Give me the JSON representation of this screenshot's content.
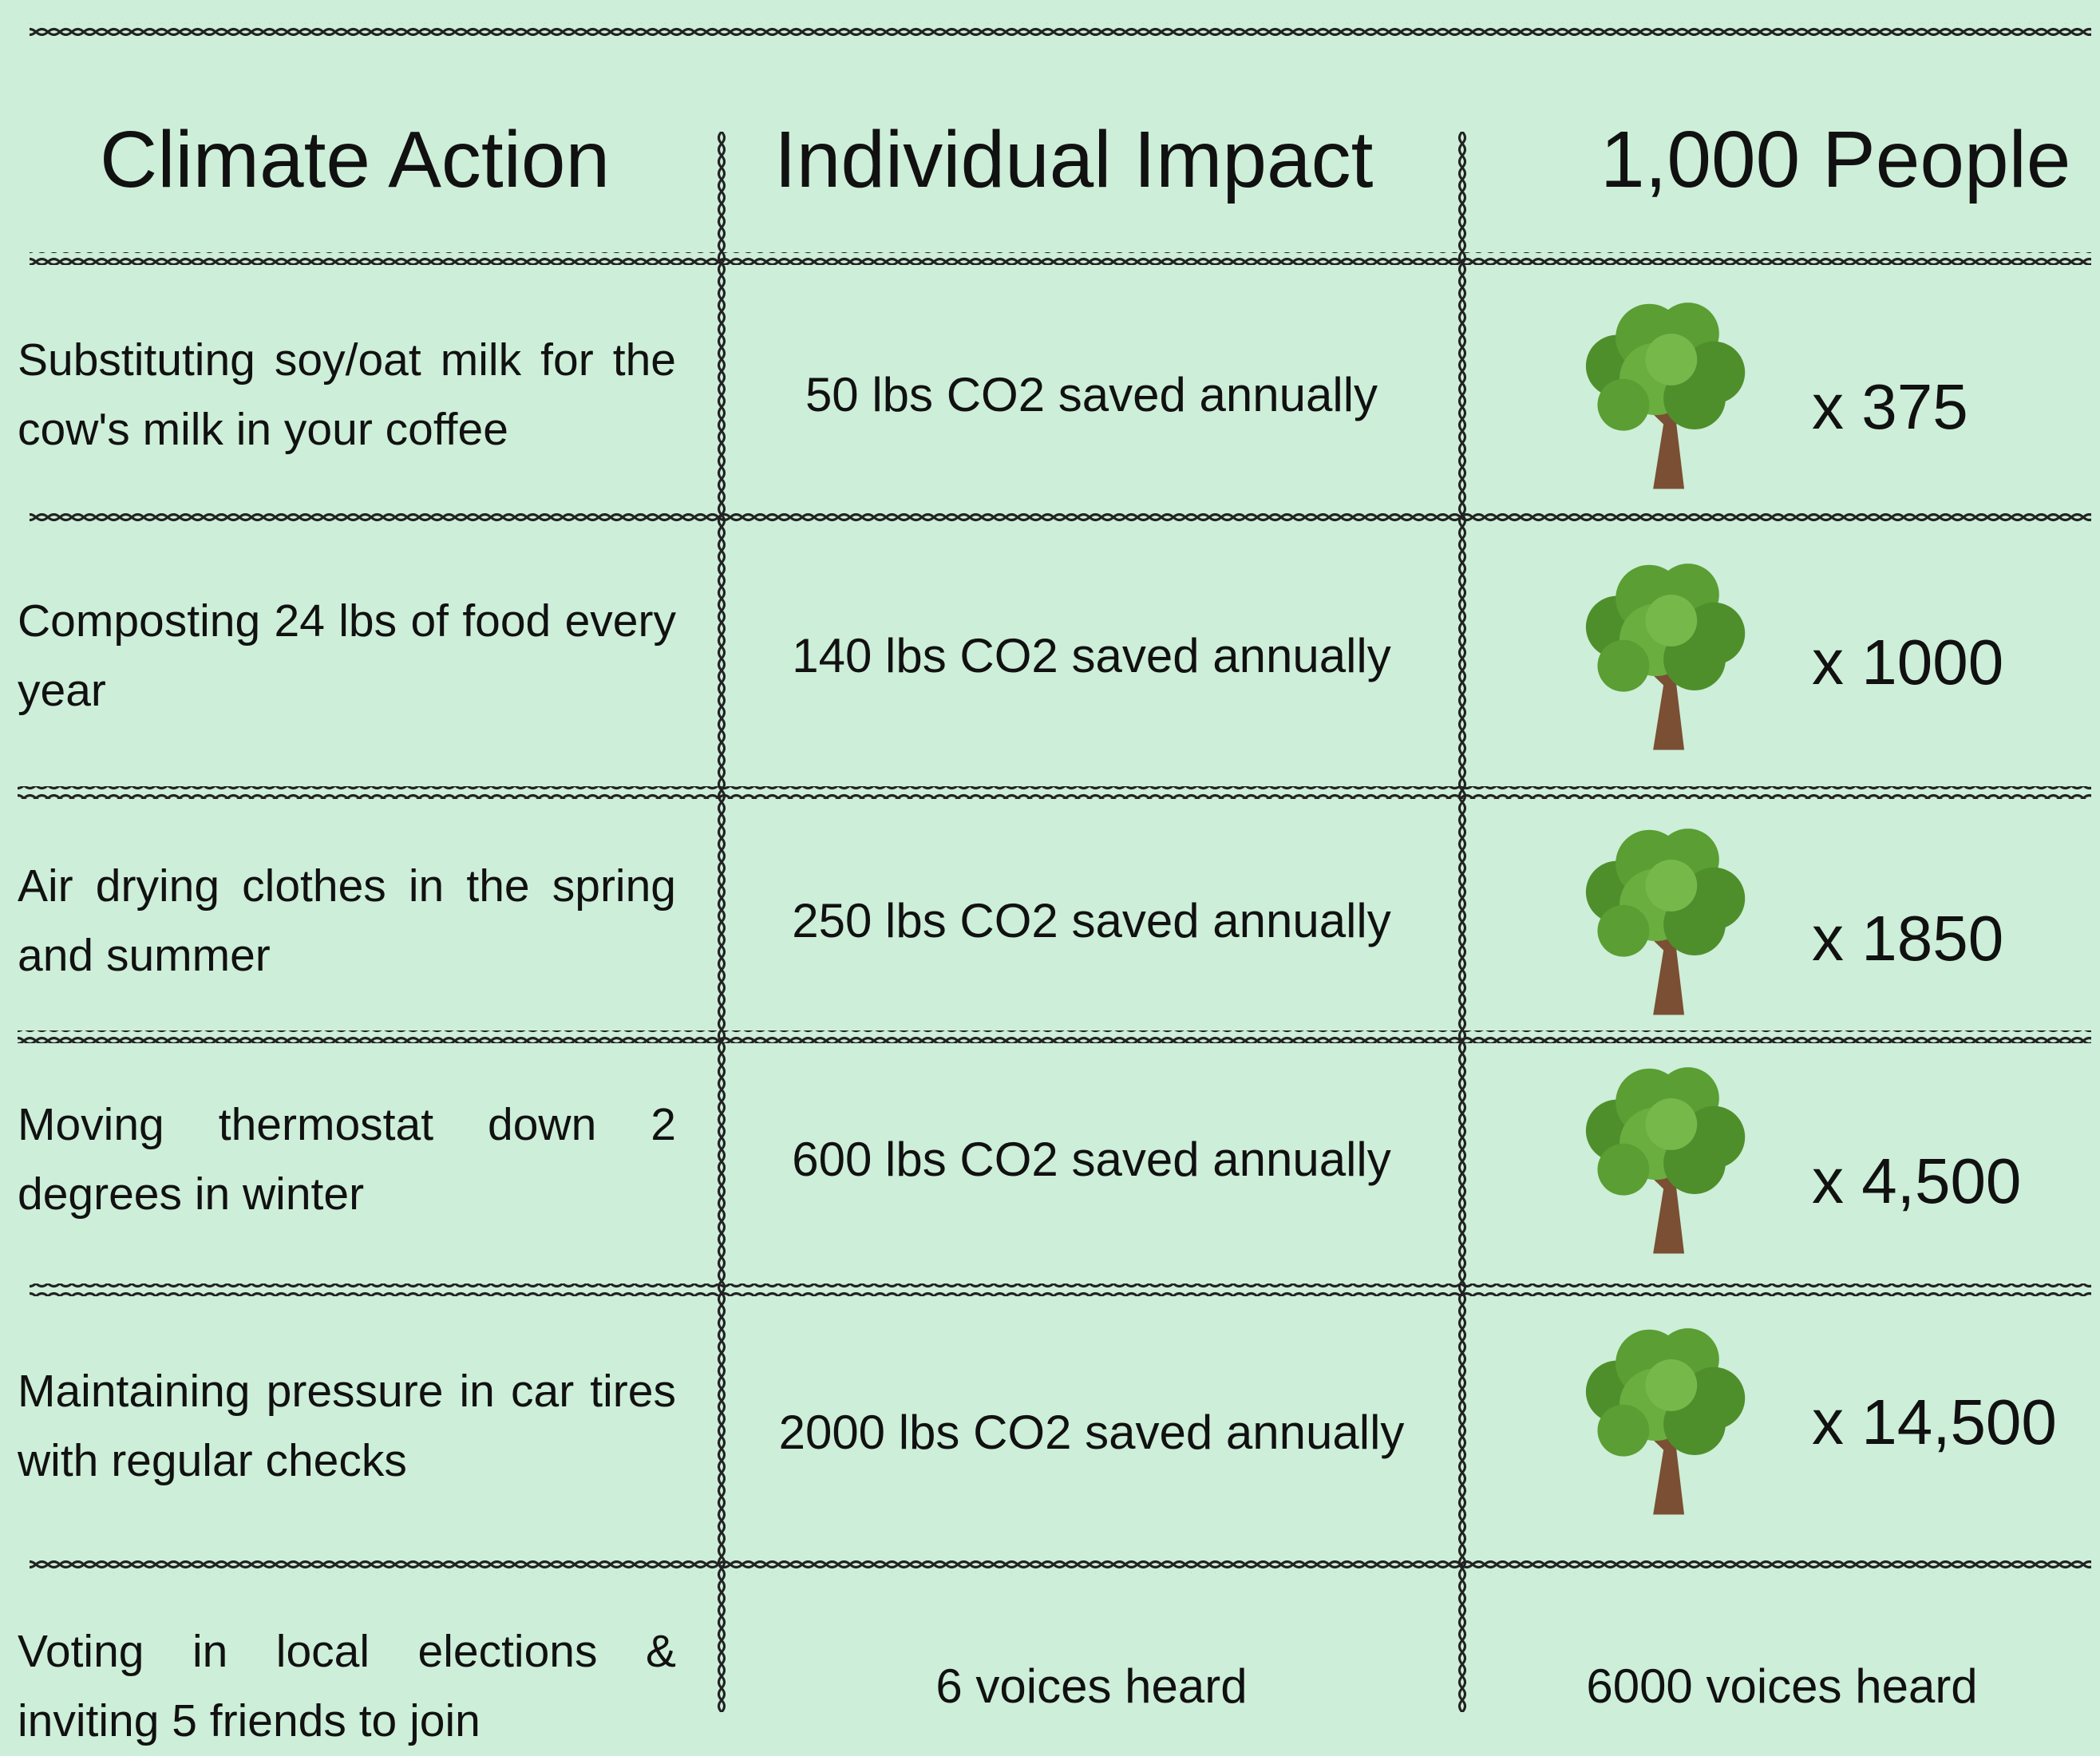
{
  "table": {
    "headers": [
      "Climate Action",
      "Individual Impact",
      "1,000 People"
    ],
    "rows": [
      [
        "Substituting soy/oat milk for the cow's milk in your coffee",
        "50 lbs CO2 saved annually",
        "x 375"
      ],
      [
        "Composting 24 lbs of food every year",
        "140 lbs CO2 saved annually",
        "x 1000"
      ],
      [
        "Air drying clothes in the spring and summer",
        "250 lbs CO2 saved annually",
        "x 1850"
      ],
      [
        "Moving thermostat down 2 degrees in winter",
        "600 lbs CO2 saved annually",
        "x 4,500"
      ],
      [
        "Maintaining pressure in car tires with regular checks",
        "2000 lbs CO2 saved annually",
        "x 14,500"
      ],
      [
        "Voting in local elections & inviting 5 friends to join",
        "6 voices heard",
        "6000 voices heard"
      ]
    ]
  }
}
